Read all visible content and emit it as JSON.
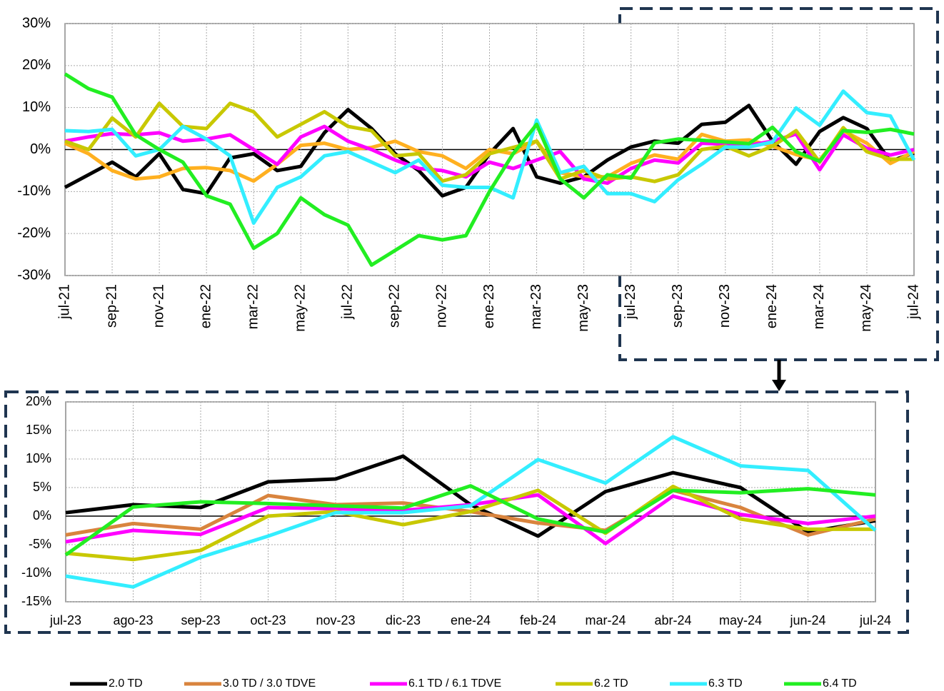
{
  "chart_data": [
    {
      "type": "line",
      "categories": [
        "jul-21",
        null,
        "sep-21",
        null,
        "nov-21",
        null,
        "ene-22",
        null,
        "mar-22",
        null,
        "may-22",
        null,
        "jul-22",
        null,
        "sep-22",
        null,
        "nov-22",
        null,
        "ene-23",
        null,
        "mar-23",
        null,
        "may-23",
        null,
        "jul-23",
        null,
        "sep-23",
        null,
        "nov-23",
        null,
        "ene-24",
        null,
        "mar-24",
        null,
        "may-24",
        null,
        "jul-24"
      ],
      "series": [
        {
          "color": "#000000",
          "values": [
            -9,
            -6,
            -3,
            -6.5,
            -1,
            -9.5,
            -10.5,
            -2,
            -1,
            -5,
            -4,
            4,
            9.5,
            5,
            -1,
            -5,
            -11,
            -9,
            -1,
            5,
            -6.5,
            -8,
            -6.5,
            -2.5,
            0.6,
            2,
            1.5,
            6,
            6.5,
            10.5,
            2,
            -3.5,
            4.3,
            7.6,
            5,
            -2.8,
            -0.8
          ]
        },
        {
          "color": "#ffb020",
          "values": [
            1.5,
            -1,
            -5,
            -7,
            -6.5,
            -4.5,
            -4.3,
            -5,
            -7.5,
            -3.5,
            1,
            1.5,
            0,
            0.5,
            2,
            -0.5,
            -1.5,
            -4.5,
            0,
            -1,
            2,
            -5.5,
            -6.5,
            -6.5,
            -3.3,
            -1.3,
            -2.3,
            3.6,
            2,
            2.3,
            0.8,
            -1.2,
            -2.5,
            4.5,
            1.5,
            -3.3,
            -0.5
          ]
        },
        {
          "color": "#ff00ff",
          "values": [
            2,
            3,
            3.8,
            3.5,
            4,
            2,
            2.5,
            3.5,
            0,
            -3.5,
            3,
            5.5,
            2,
            0,
            -2.5,
            -4.5,
            -5,
            -6.5,
            -3,
            -4.5,
            -2.5,
            -0.5,
            -7,
            -8,
            -4.5,
            -2.5,
            -3.2,
            1.5,
            1.3,
            1,
            2,
            3.7,
            -4.8,
            3.5,
            0.3,
            -1.3,
            0
          ]
        },
        {
          "color": "#c8c800",
          "values": [
            2,
            0,
            7.5,
            3,
            11,
            5.5,
            5,
            11,
            9,
            3,
            6,
            9,
            5.5,
            4.5,
            -1.5,
            -1,
            -7.5,
            -6,
            -1,
            0.5,
            2,
            -7,
            -5,
            -7,
            -6.5,
            -7.6,
            -6,
            0,
            0.8,
            -1.5,
            0.8,
            4.5,
            -3,
            5.2,
            -0.5,
            -2.3,
            -2.3
          ]
        },
        {
          "color": "#33eeff",
          "values": [
            4.5,
            4.3,
            4.8,
            -1.5,
            0,
            5.5,
            2.5,
            -1.5,
            -17.5,
            -9,
            -6.5,
            -1.5,
            -0.5,
            -3,
            -5.5,
            -2.5,
            -8.5,
            -9,
            -9,
            -11.5,
            7,
            -5.5,
            -4,
            -10.5,
            -10.5,
            -12.4,
            -7.2,
            -3.5,
            0.6,
            0.6,
            1.8,
            9.9,
            5.8,
            13.9,
            8.8,
            8,
            -2.5
          ]
        },
        {
          "color": "#22ee22",
          "values": [
            18,
            14.5,
            12.5,
            3.5,
            0,
            -3,
            -11,
            -13,
            -23.5,
            -20,
            -11.5,
            -15.5,
            -18,
            -27.5,
            -24,
            -20.5,
            -21.5,
            -20.5,
            -10,
            -1,
            6,
            -7,
            -11.5,
            -6,
            -6.8,
            1.6,
            2.5,
            2.2,
            1.8,
            1.4,
            5.3,
            -0.5,
            -2.8,
            4.5,
            4.1,
            4.8,
            3.7
          ]
        }
      ],
      "ylim": [
        -30,
        30
      ],
      "yticks": [
        {
          "value": -30,
          "label": "-30%"
        },
        {
          "value": -20,
          "label": "-20%"
        },
        {
          "value": -10,
          "label": "-10%"
        },
        {
          "value": 0,
          "label": "0%"
        },
        {
          "value": 10,
          "label": "10%"
        },
        {
          "value": 20,
          "label": "20%"
        },
        {
          "value": 30,
          "label": "30%"
        }
      ],
      "grid": true
    },
    {
      "type": "line",
      "categories": [
        "jul-23",
        "ago-23",
        "sep-23",
        "oct-23",
        "nov-23",
        "dic-23",
        "ene-24",
        "feb-24",
        "mar-24",
        "abr-24",
        "may-24",
        "jun-24",
        "jul-24"
      ],
      "series": [
        {
          "name": "2.0 TD",
          "color": "#000000",
          "values": [
            0.6,
            2,
            1.5,
            6,
            6.5,
            10.5,
            2,
            -3.5,
            4.3,
            7.6,
            5,
            -2.8,
            -0.8
          ]
        },
        {
          "name": "3.0 TD / 3.0 TDVE",
          "color": "#d9843e",
          "values": [
            -3.3,
            -1.3,
            -2.3,
            3.6,
            2,
            2.3,
            0.8,
            -1.2,
            -2.5,
            4.5,
            1.5,
            -3.3,
            -0.5
          ]
        },
        {
          "name": "6.1 TD / 6.1 TDVE",
          "color": "#ff00ff",
          "values": [
            -4.5,
            -2.5,
            -3.2,
            1.5,
            1.3,
            1,
            2,
            3.7,
            -4.8,
            3.5,
            0.3,
            -1.3,
            0
          ]
        },
        {
          "name": "6.2 TD",
          "color": "#c8c800",
          "values": [
            -6.5,
            -7.6,
            -6,
            0,
            0.8,
            -1.5,
            0.8,
            4.5,
            -3,
            5.2,
            -0.5,
            -2.3,
            -2.3
          ]
        },
        {
          "name": "6.3 TD",
          "color": "#33eeff",
          "values": [
            -10.5,
            -12.4,
            -7.2,
            -3.5,
            0.6,
            0.6,
            1.8,
            9.9,
            5.8,
            13.9,
            8.8,
            8,
            -2.5
          ]
        },
        {
          "name": "6.4 TD",
          "color": "#22ee22",
          "values": [
            -6.8,
            1.6,
            2.5,
            2.2,
            1.8,
            1.4,
            5.3,
            -0.5,
            -2.8,
            4.5,
            4.1,
            4.8,
            3.7
          ]
        }
      ],
      "ylim": [
        -15,
        20
      ],
      "yticks": [
        {
          "value": -15,
          "label": "-15%"
        },
        {
          "value": -10,
          "label": "-10%"
        },
        {
          "value": -5,
          "label": "-5%"
        },
        {
          "value": 0,
          "label": "0%"
        },
        {
          "value": 5,
          "label": "5%"
        },
        {
          "value": 10,
          "label": "10%"
        },
        {
          "value": 15,
          "label": "15%"
        },
        {
          "value": 20,
          "label": "20%"
        }
      ],
      "grid": true
    }
  ]
}
